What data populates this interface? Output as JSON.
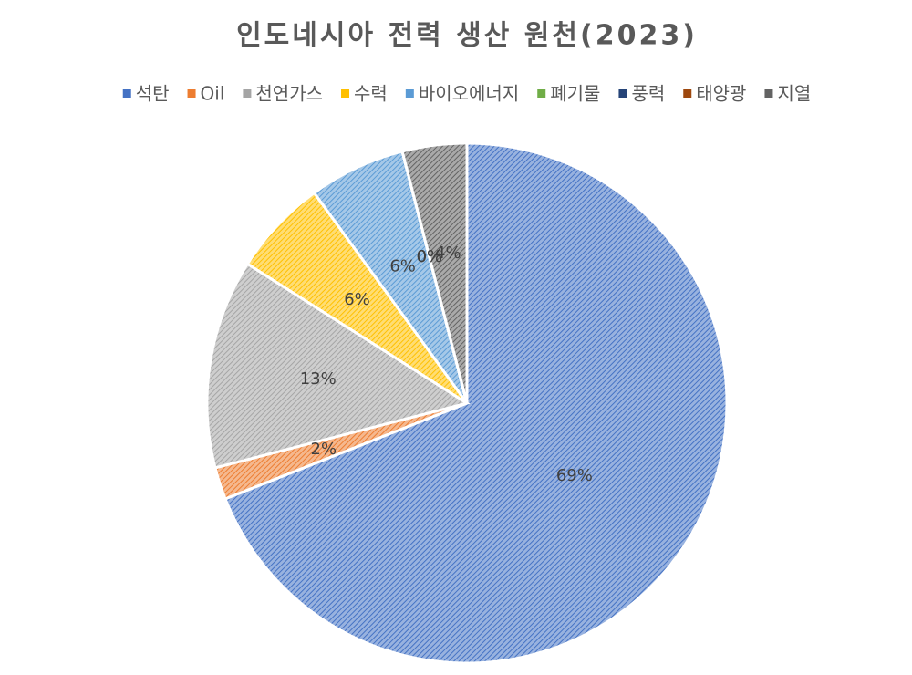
{
  "chart_data": {
    "type": "pie",
    "title": "인도네시아 전력 생산 원천(2023)",
    "categories": [
      "석탄",
      "Oil",
      "천연가스",
      "수력",
      "바이오에너지",
      "폐기물",
      "풍력",
      "태양광",
      "지열"
    ],
    "values": [
      69,
      2,
      13,
      6,
      6,
      0,
      0,
      0,
      4
    ],
    "value_labels": [
      "69%",
      "2%",
      "13%",
      "6%",
      "6%",
      "0%",
      "0%",
      "0%",
      "4%"
    ],
    "colors": [
      "#4472c4",
      "#ed7d31",
      "#a5a5a5",
      "#ffc000",
      "#5b9bd5",
      "#70ad47",
      "#264478",
      "#9e480e",
      "#636363"
    ],
    "legend": "top"
  }
}
